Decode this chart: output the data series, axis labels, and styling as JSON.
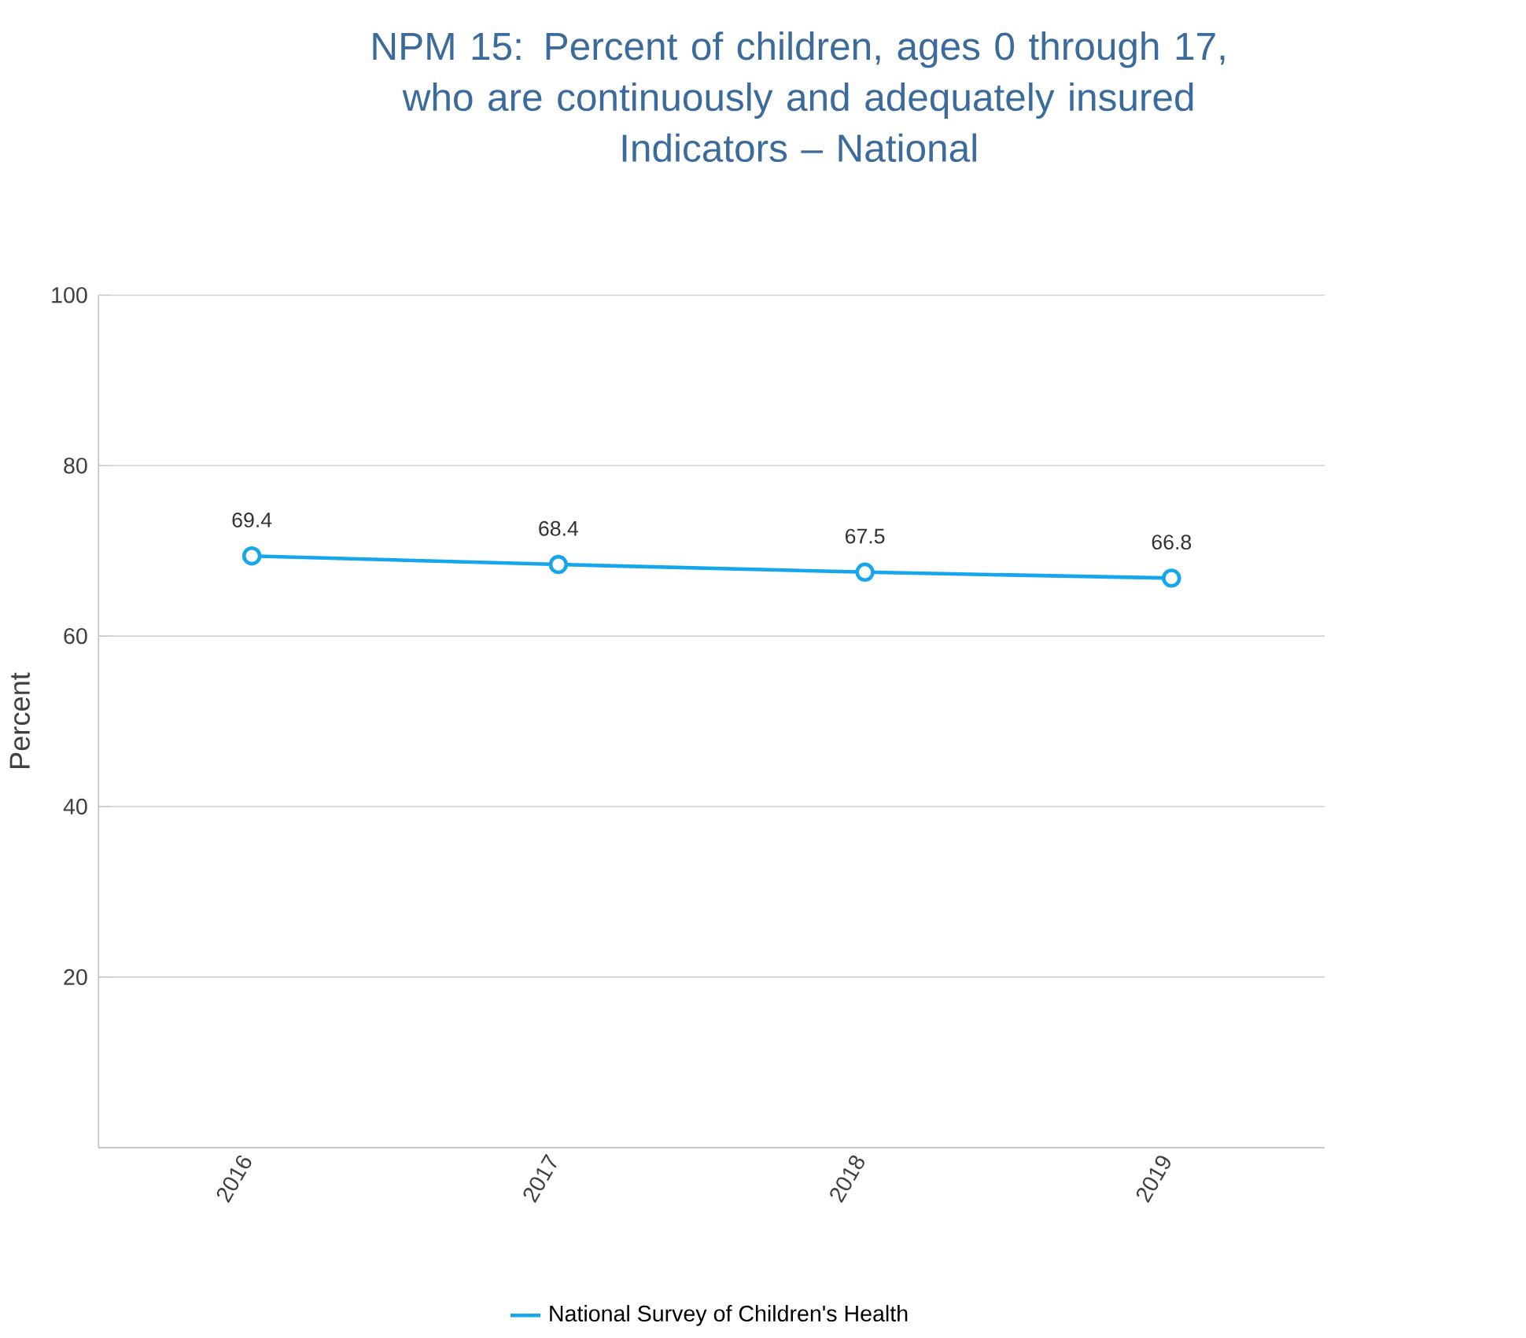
{
  "chart_data": {
    "type": "line",
    "title": "NPM 15: Percent of children, ages 0 through 17, who are continuously and adequately insured",
    "subtitle": "Indicators – National",
    "ylabel": "Percent",
    "categories": [
      "2016",
      "2017",
      "2018",
      "2019"
    ],
    "series": [
      {
        "name": "National Survey of Children's Health",
        "color": "#16a6ec",
        "values": [
          69.4,
          68.4,
          67.5,
          66.8
        ]
      }
    ],
    "ylim": [
      0,
      100
    ],
    "yticks": [
      {
        "value": 0,
        "label": null
      },
      20,
      40,
      60,
      80,
      100
    ],
    "grid": "y",
    "legend": "bottom",
    "marker": "circle",
    "line_style": "solid",
    "data_labels": true
  }
}
